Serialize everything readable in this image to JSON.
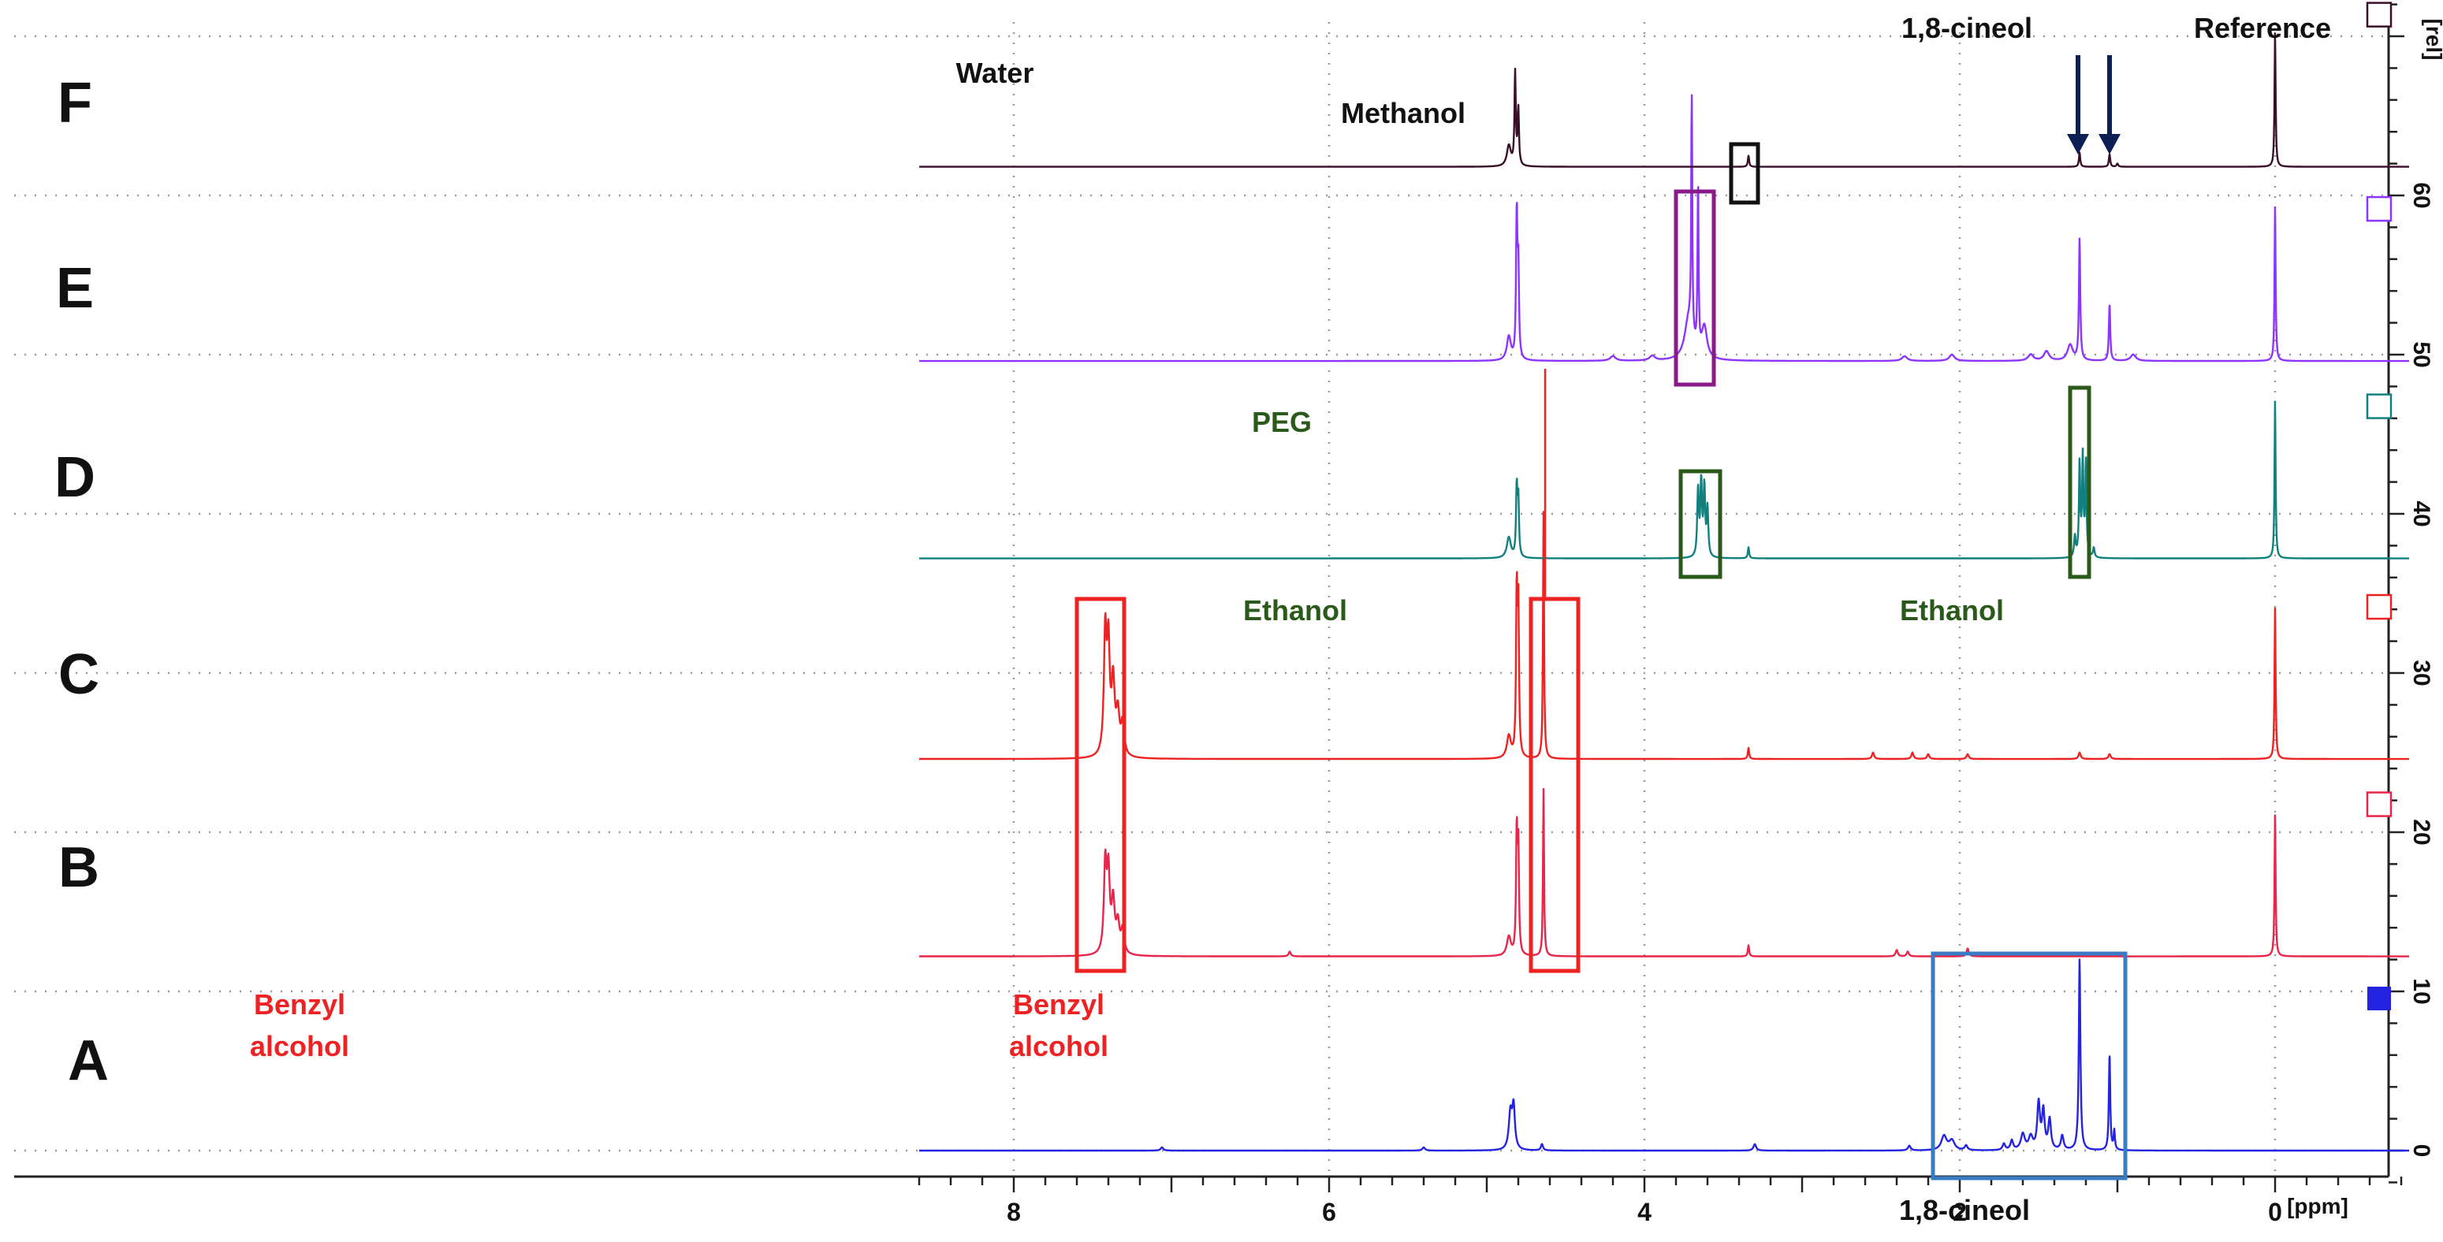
{
  "chart_data": {
    "type": "line",
    "x_axis": {
      "unit": "[ppm]",
      "range": [
        8.6,
        -1.0
      ],
      "reversed": true,
      "ticks": [
        "8",
        "6",
        "4",
        "2",
        "0"
      ],
      "tick_values": [
        8,
        6,
        4,
        2,
        0
      ]
    },
    "y_axis": {
      "unit": "[rel]",
      "range": [
        -2,
        72
      ],
      "ticks": [
        "0",
        "10",
        "20",
        "30",
        "40",
        "50",
        "60"
      ],
      "tick_values": [
        0,
        10,
        20,
        30,
        40,
        50,
        60
      ]
    },
    "grid": true,
    "series": [
      {
        "name": "A",
        "color": "#2424e0",
        "baseline": 0,
        "peaks": [
          [
            7.06,
            0.2,
            0.01
          ],
          [
            5.4,
            0.2,
            0.01
          ],
          [
            4.85,
            2.3,
            0.012
          ],
          [
            4.83,
            2.6,
            0.01
          ],
          [
            4.65,
            0.4,
            0.008
          ],
          [
            3.3,
            0.4,
            0.01
          ],
          [
            2.32,
            0.3,
            0.01
          ],
          [
            2.1,
            0.9,
            0.02
          ],
          [
            2.05,
            0.6,
            0.02
          ],
          [
            1.96,
            0.3,
            0.01
          ],
          [
            1.72,
            0.4,
            0.01
          ],
          [
            1.67,
            0.6,
            0.01
          ],
          [
            1.6,
            1.0,
            0.015
          ],
          [
            1.55,
            0.8,
            0.015
          ],
          [
            1.5,
            2.9,
            0.01
          ],
          [
            1.47,
            2.4,
            0.01
          ],
          [
            1.43,
            1.9,
            0.01
          ],
          [
            1.35,
            0.9,
            0.01
          ],
          [
            1.24,
            12.0,
            0.006
          ],
          [
            1.05,
            6.1,
            0.005
          ],
          [
            1.02,
            1.2,
            0.005
          ]
        ]
      },
      {
        "name": "B",
        "color": "#e8254a",
        "baseline": 12.2,
        "peaks": [
          [
            7.42,
            5.5,
            0.01
          ],
          [
            7.4,
            4.8,
            0.01
          ],
          [
            7.37,
            3.2,
            0.012
          ],
          [
            7.34,
            1.8,
            0.012
          ],
          [
            7.31,
            1.5,
            0.012
          ],
          [
            6.25,
            0.3,
            0.008
          ],
          [
            4.86,
            1.2,
            0.015
          ],
          [
            4.81,
            7.5,
            0.005
          ],
          [
            4.8,
            6.5,
            0.005
          ],
          [
            4.64,
            10.5,
            0.004
          ],
          [
            3.34,
            0.7,
            0.005
          ],
          [
            2.4,
            0.4,
            0.008
          ],
          [
            2.33,
            0.3,
            0.008
          ],
          [
            1.95,
            0.5,
            0.008
          ],
          [
            0.0,
            9.0,
            0.004
          ]
        ]
      },
      {
        "name": "C",
        "color": "#ee2222",
        "baseline": 24.6,
        "peaks": [
          [
            7.42,
            7.5,
            0.01
          ],
          [
            7.4,
            6.5,
            0.01
          ],
          [
            7.37,
            4.5,
            0.012
          ],
          [
            7.34,
            2.5,
            0.012
          ],
          [
            7.31,
            2.0,
            0.012
          ],
          [
            4.86,
            1.4,
            0.015
          ],
          [
            4.81,
            10.0,
            0.005
          ],
          [
            4.8,
            9.0,
            0.005
          ],
          [
            4.64,
            15.5,
            0.004
          ],
          [
            3.34,
            0.7,
            0.005
          ],
          [
            2.55,
            0.4,
            0.008
          ],
          [
            2.3,
            0.4,
            0.008
          ],
          [
            2.2,
            0.3,
            0.008
          ],
          [
            1.95,
            0.3,
            0.008
          ],
          [
            1.24,
            0.4,
            0.008
          ],
          [
            1.05,
            0.3,
            0.008
          ],
          [
            0.0,
            9.6,
            0.004
          ]
        ]
      },
      {
        "name": "D",
        "color": "#138080",
        "baseline": 37.2,
        "peaks": [
          [
            4.86,
            1.3,
            0.015
          ],
          [
            4.81,
            4.3,
            0.005
          ],
          [
            4.8,
            3.5,
            0.005
          ],
          [
            3.66,
            4.2,
            0.006
          ],
          [
            3.64,
            4.6,
            0.006
          ],
          [
            3.62,
            4.3,
            0.006
          ],
          [
            3.6,
            3.0,
            0.006
          ],
          [
            3.34,
            0.7,
            0.005
          ],
          [
            1.27,
            1.3,
            0.006
          ],
          [
            1.24,
            5.8,
            0.005
          ],
          [
            1.22,
            6.2,
            0.005
          ],
          [
            1.2,
            5.9,
            0.005
          ],
          [
            1.15,
            0.6,
            0.006
          ],
          [
            0.0,
            10.0,
            0.004
          ]
        ]
      },
      {
        "name": "E",
        "color": "#8b35ff",
        "baseline": 49.6,
        "peaks": [
          [
            4.86,
            1.5,
            0.015
          ],
          [
            4.81,
            9.0,
            0.005
          ],
          [
            4.8,
            5.5,
            0.005
          ],
          [
            3.72,
            2.5,
            0.03
          ],
          [
            3.7,
            15.0,
            0.004
          ],
          [
            3.66,
            10.5,
            0.004
          ],
          [
            3.62,
            2.0,
            0.02
          ],
          [
            4.2,
            0.3,
            0.02
          ],
          [
            3.95,
            0.3,
            0.02
          ],
          [
            2.35,
            0.3,
            0.02
          ],
          [
            2.05,
            0.4,
            0.02
          ],
          [
            1.55,
            0.4,
            0.02
          ],
          [
            1.45,
            0.6,
            0.02
          ],
          [
            1.3,
            1.0,
            0.02
          ],
          [
            1.24,
            7.6,
            0.005
          ],
          [
            1.05,
            3.6,
            0.005
          ],
          [
            0.9,
            0.4,
            0.02
          ],
          [
            0.0,
            9.8,
            0.004
          ]
        ]
      },
      {
        "name": "F",
        "color": "#3a0f2a",
        "baseline": 61.8,
        "peaks": [
          [
            4.86,
            1.3,
            0.015
          ],
          [
            4.82,
            5.8,
            0.005
          ],
          [
            4.8,
            3.5,
            0.005
          ],
          [
            3.34,
            0.7,
            0.005
          ],
          [
            1.24,
            0.9,
            0.005
          ],
          [
            1.05,
            0.8,
            0.005
          ],
          [
            1.0,
            0.2,
            0.006
          ],
          [
            0.0,
            8.5,
            0.004
          ]
        ]
      }
    ],
    "trace_labels": [
      "F",
      "E",
      "D",
      "C",
      "B",
      "A"
    ],
    "annotations": {
      "water": "Water",
      "methanol": "Methanol",
      "peg": "PEG",
      "ethanol_left": "Ethanol",
      "ethanol_right": "Ethanol",
      "benzyl_left_line1": "Benzyl",
      "benzyl_left_line2": "alcohol",
      "benzyl_right_line1": "Benzyl",
      "benzyl_right_line2": "alcohol",
      "cineol_top": "1,8-cineol",
      "cineol_bottom": "1,8-cineol",
      "reference": "Reference"
    },
    "annotation_colors": {
      "black": "#111111",
      "red": "#ee2222",
      "green": "#2a5a1a",
      "purple": "#8a1a8a",
      "blue": "#3a7cc4",
      "navy": "#0b1f55"
    }
  }
}
